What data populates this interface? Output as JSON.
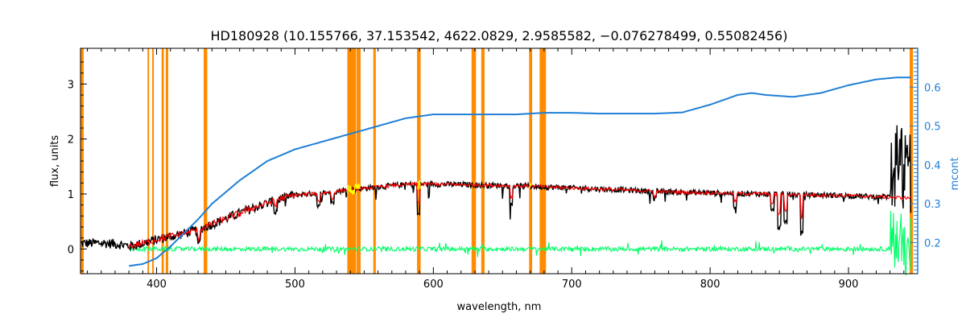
{
  "chart_data": {
    "type": "line",
    "title": "HD180928   (10.155766, 37.153542, 4622.0829, 2.9585582, −0.076278499, 0.55082456)",
    "xlabel": "wavelength, nm",
    "ylabel": "flux, units",
    "ylabel_right": "mcont",
    "xlim": [
      345,
      950
    ],
    "ylim": [
      -0.45,
      3.65
    ],
    "ylim_right": [
      0.12,
      0.7
    ],
    "x_ticks": [
      400,
      500,
      600,
      700,
      800,
      900
    ],
    "x_tick_labels": [
      "400",
      "500",
      "600",
      "700",
      "800",
      "900"
    ],
    "y_ticks": [
      0,
      1,
      2,
      3
    ],
    "y_tick_labels": [
      "0",
      "1",
      "2",
      "3"
    ],
    "y_right_ticks": [
      0.2,
      0.3,
      0.4,
      0.5,
      0.6
    ],
    "y_right_tick_labels": [
      "0.2",
      "0.3",
      "0.4",
      "0.5",
      "0.6"
    ],
    "grid": false,
    "colors": {
      "observed": "#000000",
      "model": "#ff0000",
      "masked_model": "#ffff00",
      "residual": "#00ff66",
      "continuum": "#1f7fd6",
      "masks": "#ff8c00",
      "right_axis": "#1f7fd6"
    },
    "mask_regions": [
      [
        345.3,
        347.3
      ],
      [
        393.4,
        394.6
      ],
      [
        396.8,
        398.0
      ],
      [
        403.6,
        405.2
      ],
      [
        406.6,
        408.4
      ],
      [
        434.0,
        436.6
      ],
      [
        537.8,
        544.2
      ],
      [
        544.6,
        547.4
      ],
      [
        556.6,
        558.4
      ],
      [
        588.2,
        590.8
      ],
      [
        627.6,
        630.8
      ],
      [
        634.6,
        637.0
      ],
      [
        669.2,
        671.4
      ],
      [
        676.8,
        681.4
      ],
      [
        944.2,
        946.6
      ]
    ],
    "series": [
      {
        "role": "observed",
        "x": [
          345,
          360,
          375,
          380,
          390,
          400,
          410,
          420,
          430,
          440,
          450,
          460,
          470,
          480,
          490,
          500,
          510,
          520,
          530,
          540,
          550,
          560,
          570,
          580,
          590,
          600,
          620,
          640,
          660,
          680,
          700,
          720,
          740,
          760,
          780,
          800,
          820,
          840,
          860,
          880,
          900,
          920,
          930,
          935,
          940,
          945
        ],
        "y": [
          0.1,
          0.11,
          0.08,
          0.05,
          0.1,
          0.17,
          0.23,
          0.28,
          0.35,
          0.45,
          0.55,
          0.65,
          0.75,
          0.83,
          0.92,
          0.98,
          1.0,
          1.02,
          1.05,
          1.08,
          1.1,
          1.13,
          1.15,
          1.17,
          1.18,
          1.18,
          1.17,
          1.16,
          1.15,
          1.13,
          1.11,
          1.09,
          1.07,
          1.05,
          1.03,
          1.02,
          1.01,
          1.0,
          0.99,
          0.98,
          0.97,
          0.95,
          0.95,
          1.2,
          1.0,
          0.95
        ]
      },
      {
        "role": "model",
        "x": [
          380,
          390,
          400,
          410,
          420,
          430,
          440,
          450,
          460,
          470,
          480,
          490,
          500,
          510,
          520,
          530,
          540,
          550,
          560,
          570,
          580,
          590,
          600,
          620,
          640,
          660,
          680,
          700,
          720,
          740,
          760,
          780,
          800,
          820,
          840,
          860,
          880,
          900,
          920,
          940,
          945
        ],
        "y": [
          0.05,
          0.1,
          0.17,
          0.23,
          0.28,
          0.35,
          0.45,
          0.55,
          0.65,
          0.75,
          0.83,
          0.92,
          0.98,
          1.0,
          1.02,
          1.05,
          1.08,
          1.1,
          1.13,
          1.15,
          1.17,
          1.18,
          1.18,
          1.17,
          1.16,
          1.15,
          1.13,
          1.11,
          1.09,
          1.07,
          1.05,
          1.03,
          1.02,
          1.01,
          1.0,
          0.99,
          0.98,
          0.97,
          0.95,
          0.93,
          0.93
        ]
      },
      {
        "role": "residual",
        "x": [
          380,
          945
        ],
        "y": [
          0.0,
          0.0
        ]
      },
      {
        "role": "continuum",
        "axis": "right",
        "x": [
          380,
          390,
          400,
          410,
          420,
          430,
          440,
          460,
          480,
          500,
          520,
          540,
          560,
          580,
          600,
          620,
          640,
          660,
          680,
          700,
          720,
          740,
          760,
          780,
          800,
          820,
          830,
          840,
          860,
          880,
          900,
          920,
          935,
          945
        ],
        "y": [
          0.14,
          0.145,
          0.16,
          0.19,
          0.225,
          0.26,
          0.3,
          0.36,
          0.41,
          0.44,
          0.46,
          0.48,
          0.5,
          0.52,
          0.53,
          0.53,
          0.53,
          0.53,
          0.534,
          0.534,
          0.532,
          0.532,
          0.532,
          0.535,
          0.555,
          0.58,
          0.585,
          0.58,
          0.575,
          0.585,
          0.605,
          0.62,
          0.625,
          0.625
        ]
      }
    ]
  }
}
